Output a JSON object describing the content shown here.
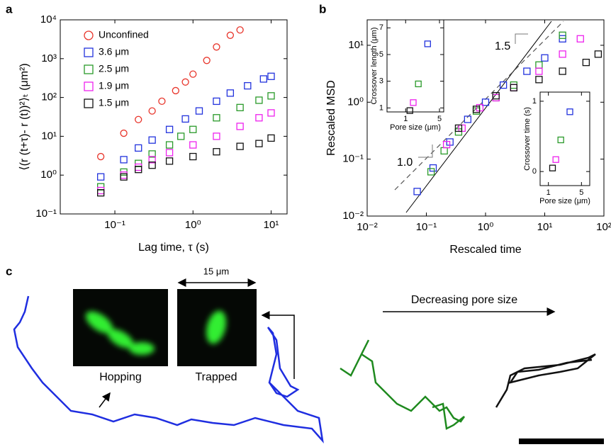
{
  "panel_labels": [
    "a",
    "b",
    "c"
  ],
  "chart_data": [
    {
      "type": "scatter",
      "xlog": true,
      "ylog": true,
      "legend": "upper left",
      "xlabel": "Lag time, τ (s)",
      "ylabel": "⟨(r (t+τ)- r (t))²⟩ₜ (μm²)",
      "xlim": [
        0.02,
        16
      ],
      "ylim": [
        0.1,
        10000
      ],
      "xticks": [
        {
          "value": 0.1,
          "label": "10⁻¹"
        },
        {
          "value": 1,
          "label": "10⁰"
        },
        {
          "value": 10,
          "label": "10¹"
        }
      ],
      "yticks": [
        {
          "value": 0.1,
          "label": "10⁻¹"
        },
        {
          "value": 1,
          "label": "10⁰"
        },
        {
          "value": 10,
          "label": "10¹"
        },
        {
          "value": 100,
          "label": "10²"
        },
        {
          "value": 1000,
          "label": "10³"
        },
        {
          "value": 10000,
          "label": "10⁴"
        }
      ],
      "series": [
        {
          "name": "Unconfined",
          "color": "#e8352b",
          "marker": "circle",
          "x": [
            0.066,
            0.13,
            0.2,
            0.3,
            0.4,
            0.6,
            0.8,
            1,
            1.5,
            2,
            3,
            4
          ],
          "values": [
            3,
            12,
            27,
            45,
            80,
            150,
            250,
            400,
            900,
            2000,
            4000,
            5500
          ]
        },
        {
          "name": "3.6 μm",
          "color": "#2233dd",
          "marker": "square",
          "x": [
            0.066,
            0.13,
            0.2,
            0.3,
            0.5,
            0.8,
            1.2,
            2,
            3,
            5,
            8,
            10
          ],
          "values": [
            0.9,
            2.5,
            5,
            8,
            15,
            28,
            45,
            80,
            130,
            200,
            300,
            350
          ]
        },
        {
          "name": "2.5 μm",
          "color": "#2a9a2a",
          "marker": "square",
          "x": [
            0.066,
            0.13,
            0.2,
            0.3,
            0.5,
            0.7,
            1,
            2,
            4,
            7,
            10
          ],
          "values": [
            0.5,
            1.2,
            2,
            3.5,
            6,
            10,
            15,
            30,
            55,
            85,
            110
          ]
        },
        {
          "name": "1.9 μm",
          "color": "#ee22ee",
          "marker": "square",
          "x": [
            0.066,
            0.13,
            0.2,
            0.3,
            0.5,
            1,
            2,
            4,
            7,
            10
          ],
          "values": [
            0.4,
            1,
            1.6,
            2.5,
            3.8,
            6,
            10,
            18,
            30,
            40
          ]
        },
        {
          "name": "1.5 μm",
          "color": "#111111",
          "marker": "square",
          "x": [
            0.066,
            0.13,
            0.2,
            0.3,
            0.5,
            1,
            2,
            4,
            7,
            10
          ],
          "values": [
            0.35,
            0.9,
            1.4,
            1.8,
            2.3,
            3,
            4,
            5.5,
            6.5,
            9
          ]
        }
      ]
    },
    {
      "type": "scatter",
      "xlog": true,
      "ylog": true,
      "xlabel": "Rescaled time",
      "ylabel": "Rescaled MSD",
      "annotations": [
        "1.0",
        "1.5"
      ],
      "xlim": [
        0.01,
        100
      ],
      "ylim": [
        0.01,
        28
      ],
      "xticks": [
        {
          "value": 0.01,
          "label": "10⁻²"
        },
        {
          "value": 0.1,
          "label": "10⁻¹"
        },
        {
          "value": 1,
          "label": "10⁰"
        },
        {
          "value": 10,
          "label": "10¹"
        },
        {
          "value": 100,
          "label": "10²"
        }
      ],
      "yticks": [
        {
          "value": 0.01,
          "label": "10⁻²"
        },
        {
          "value": 0.1,
          "label": "10⁻¹"
        },
        {
          "value": 1,
          "label": "10⁰"
        },
        {
          "value": 10,
          "label": "10¹"
        }
      ],
      "series": [
        {
          "color": "#2233dd",
          "marker": "square",
          "x": [
            0.07,
            0.13,
            0.25,
            0.5,
            1,
            2,
            5,
            10,
            20
          ],
          "values": [
            0.027,
            0.07,
            0.2,
            0.5,
            1,
            2,
            3.5,
            6,
            13
          ]
        },
        {
          "color": "#2a9a2a",
          "marker": "square",
          "x": [
            0.12,
            0.2,
            0.35,
            0.7,
            1.5,
            3,
            8,
            20
          ],
          "values": [
            0.06,
            0.14,
            0.3,
            0.7,
            1.2,
            2,
            4.5,
            15
          ]
        },
        {
          "color": "#ee22ee",
          "marker": "square",
          "x": [
            0.22,
            0.4,
            0.8,
            1.5,
            3,
            8,
            20,
            40
          ],
          "values": [
            0.18,
            0.35,
            0.8,
            1.2,
            1.8,
            3.5,
            7,
            13
          ]
        },
        {
          "color": "#111111",
          "marker": "square",
          "x": [
            0.35,
            0.7,
            1.5,
            3,
            8,
            20,
            50,
            80
          ],
          "values": [
            0.35,
            0.75,
            1.3,
            1.8,
            2.5,
            3.5,
            5,
            7
          ]
        }
      ]
    },
    {
      "type": "scatter",
      "xlabel": "Pore size (μm)",
      "ylabel": "Crossover length (μm)",
      "xlim": [
        -1.2,
        5.5
      ],
      "ylim": [
        0.7,
        7.6
      ],
      "xticks": [
        1,
        5
      ],
      "yticks": [
        1,
        3,
        5,
        7
      ],
      "series": [
        {
          "color": "#111111",
          "marker": "square",
          "x": [
            1.5
          ],
          "values": [
            0.8
          ]
        },
        {
          "color": "#ee22ee",
          "marker": "square",
          "x": [
            1.9
          ],
          "values": [
            1.4
          ]
        },
        {
          "color": "#2a9a2a",
          "marker": "square",
          "x": [
            2.5
          ],
          "values": [
            2.8
          ]
        },
        {
          "color": "#2233dd",
          "marker": "square",
          "x": [
            3.6
          ],
          "values": [
            5.8
          ]
        }
      ]
    },
    {
      "type": "scatter",
      "xlabel": "Pore size (μm)",
      "ylabel": "Crossover time (s)",
      "xlim": [
        0,
        6
      ],
      "ylim": [
        -0.2,
        1.13
      ],
      "xticks": [
        1,
        5
      ],
      "yticks": [
        0,
        1
      ],
      "series": [
        {
          "color": "#111111",
          "marker": "square",
          "x": [
            1.5
          ],
          "values": [
            0.05
          ]
        },
        {
          "color": "#ee22ee",
          "marker": "square",
          "x": [
            1.9
          ],
          "values": [
            0.17
          ]
        },
        {
          "color": "#2a9a2a",
          "marker": "square",
          "x": [
            2.5
          ],
          "values": [
            0.45
          ]
        },
        {
          "color": "#2233dd",
          "marker": "square",
          "x": [
            3.6
          ],
          "values": [
            0.85
          ]
        }
      ]
    }
  ],
  "panel_c": {
    "scale_label": "15 μm",
    "image_labels": [
      "Hopping",
      "Trapped"
    ],
    "trend_label": "Decreasing pore size"
  }
}
